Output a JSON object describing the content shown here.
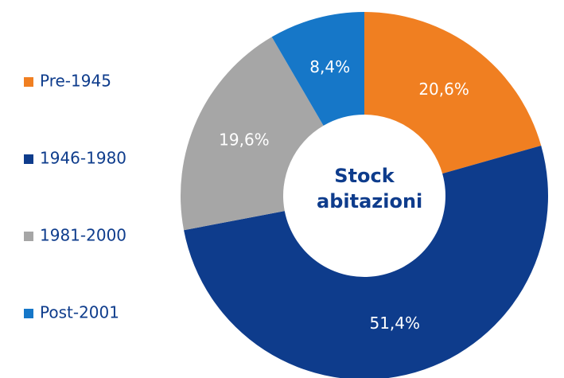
{
  "chart_data": {
    "type": "donut",
    "title": "Stock abitazioni",
    "categories": [
      "Pre-1945",
      "1946-1980",
      "1981-2000",
      "Post-2001"
    ],
    "values": [
      20.6,
      51.4,
      19.6,
      8.4
    ],
    "value_labels": [
      "20,6%",
      "51,4%",
      "19,6%",
      "8,4%"
    ],
    "colors": [
      "#f07f21",
      "#0e3c8c",
      "#a6a6a6",
      "#1677c8"
    ],
    "legend": "left"
  }
}
